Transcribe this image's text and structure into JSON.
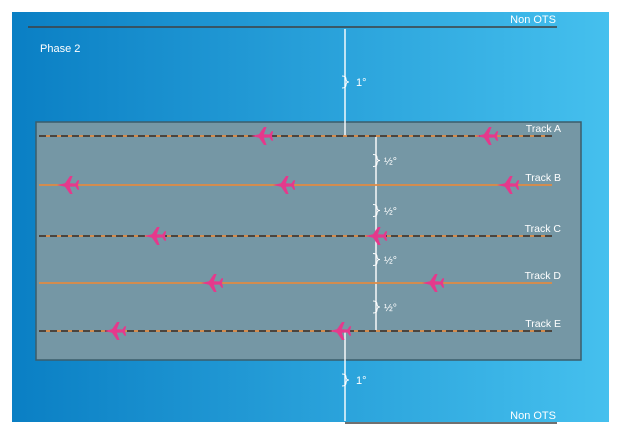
{
  "phase_label": "Phase 2",
  "non_ots_label": "Non OTS",
  "outer_separation_label": "1°",
  "inner_separation_label": "½°",
  "tracks": [
    {
      "name": "Track A",
      "line_style": "dashed",
      "aircraft_count": 2
    },
    {
      "name": "Track B",
      "line_style": "solid",
      "aircraft_count": 3
    },
    {
      "name": "Track C",
      "line_style": "dashed",
      "aircraft_count": 2
    },
    {
      "name": "Track D",
      "line_style": "solid",
      "aircraft_count": 2
    },
    {
      "name": "Track E",
      "line_style": "dashed",
      "aircraft_count": 2
    }
  ],
  "colors": {
    "background_start": "#0a7fc4",
    "background_end": "#45c0ee",
    "track_region": "#7597a5",
    "track_region_border": "#3b5d6b",
    "track_line": "#e08a43",
    "track_dash": "#3a3a3a",
    "aircraft": "#e5398c",
    "text": "#ffffff",
    "boundary_line": "#404040"
  },
  "aircraft_icon": "airplane-icon",
  "separation_icon": "curly-brace-icon"
}
